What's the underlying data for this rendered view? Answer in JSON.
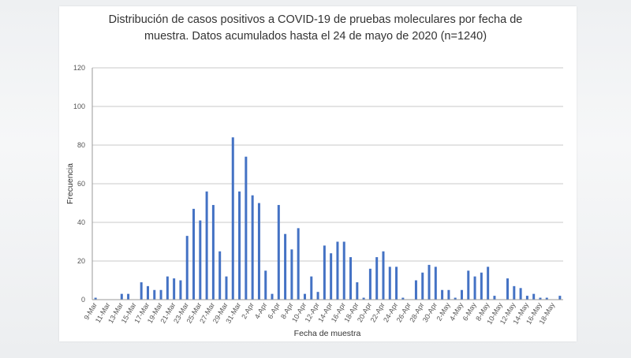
{
  "chart_data": {
    "type": "bar",
    "title_lines": [
      "Distribución de casos positivos a COVID-19 de pruebas moleculares por fecha de",
      "muestra. Datos acumulados hasta el 24 de mayo de 2020 (n=1240)"
    ],
    "xlabel": "Fecha de muestra",
    "ylabel": "Frecuencia",
    "ylim": [
      0,
      120
    ],
    "yticks": [
      0,
      20,
      40,
      60,
      80,
      100,
      120
    ],
    "grid": true,
    "legend": "none",
    "bar_color": "#4472c4",
    "categories": [
      "9-Mar",
      "10-Mar",
      "11-Mar",
      "12-Mar",
      "13-Mar",
      "14-Mar",
      "15-Mar",
      "16-Mar",
      "17-Mar",
      "18-Mar",
      "19-Mar",
      "20-Mar",
      "21-Mar",
      "22-Mar",
      "23-Mar",
      "24-Mar",
      "25-Mar",
      "26-Mar",
      "27-Mar",
      "28-Mar",
      "29-Mar",
      "30-Mar",
      "31-Mar",
      "1-Apr",
      "2-Apr",
      "3-Apr",
      "4-Apr",
      "5-Apr",
      "6-Apr",
      "7-Apr",
      "8-Apr",
      "9-Apr",
      "10-Apr",
      "11-Apr",
      "12-Apr",
      "13-Apr",
      "14-Apr",
      "15-Apr",
      "16-Apr",
      "17-Apr",
      "18-Apr",
      "19-Apr",
      "20-Apr",
      "21-Apr",
      "22-Apr",
      "23-Apr",
      "24-Apr",
      "25-Apr",
      "26-Apr",
      "27-Apr",
      "28-Apr",
      "29-Apr",
      "30-Apr",
      "1-May",
      "2-May",
      "3-May",
      "4-May",
      "5-May",
      "6-May",
      "7-May",
      "8-May",
      "9-May",
      "10-May",
      "11-May",
      "12-May",
      "13-May",
      "14-May",
      "15-May",
      "16-May",
      "17-May",
      "18-May",
      "19-May"
    ],
    "values": [
      1,
      0,
      0,
      0,
      3,
      3,
      0,
      9,
      7,
      5,
      5,
      12,
      11,
      10,
      33,
      47,
      41,
      56,
      49,
      25,
      12,
      84,
      56,
      74,
      54,
      50,
      15,
      3,
      49,
      34,
      26,
      37,
      3,
      12,
      4,
      28,
      24,
      30,
      30,
      22,
      9,
      1,
      16,
      22,
      25,
      17,
      17,
      1,
      0,
      10,
      14,
      18,
      17,
      5,
      5,
      1,
      5,
      15,
      12,
      14,
      17,
      2,
      0,
      11,
      7,
      6,
      2,
      3,
      1,
      1,
      0,
      2
    ],
    "xtick_labels": [
      "9-Mar",
      "11-Mar",
      "13-Mar",
      "15-Mar",
      "17-Mar",
      "19-Mar",
      "21-Mar",
      "23-Mar",
      "25-Mar",
      "27-Mar",
      "29-Mar",
      "31-Mar",
      "2-Apr",
      "4-Apr",
      "6-Apr",
      "8-Apr",
      "10-Apr",
      "12-Apr",
      "14-Apr",
      "16-Apr",
      "18-Apr",
      "20-Apr",
      "22-Apr",
      "24-Apr",
      "26-Apr",
      "28-Apr",
      "30-Apr",
      "2-May",
      "4-May",
      "6-May",
      "8-May",
      "10-May",
      "12-May",
      "14-May",
      "16-May",
      "18-May"
    ]
  }
}
